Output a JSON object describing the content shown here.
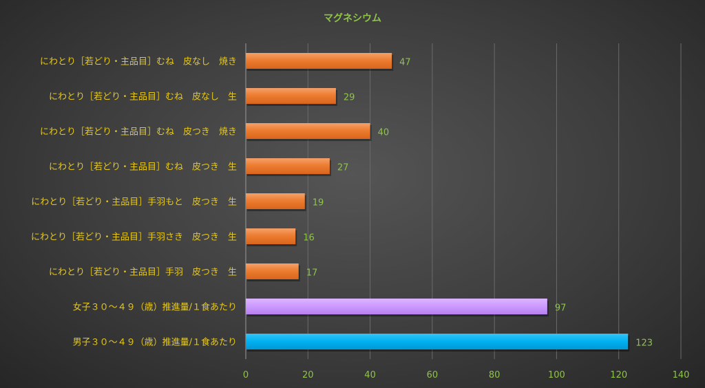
{
  "chart_data": {
    "type": "bar",
    "orientation": "horizontal",
    "title": "マグネシウム",
    "categories": [
      "にわとり［若どり・主品目］むね　皮なし　焼き",
      "にわとり［若どり・主品目］むね　皮なし　生",
      "にわとり［若どり・主品目］むね　皮つき　焼き",
      "にわとり［若どり・主品目］むね　皮つき　生",
      "にわとり［若どり・主品目］手羽もと　皮つき　生",
      "にわとり［若どり・主品目］手羽さき　皮つき　生",
      "にわとり［若どり・主品目］手羽　皮つき　生",
      "女子３０～４９（歳）推進量/１食あたり",
      "男子３０～４９（歳）推進量/１食あたり"
    ],
    "values": [
      47,
      29,
      40,
      27,
      19,
      16,
      17,
      97,
      123
    ],
    "bar_colors": [
      "#ed7d31",
      "#ed7d31",
      "#ed7d31",
      "#ed7d31",
      "#ed7d31",
      "#ed7d31",
      "#ed7d31",
      "#cc99ff",
      "#00b0f0"
    ],
    "x_ticks": [
      "0",
      "20",
      "40",
      "60",
      "80",
      "100",
      "120",
      "140"
    ],
    "xlim": [
      0,
      140
    ],
    "grid": true,
    "legend": "none",
    "colors": {
      "category_label": "#e6c81e",
      "tick_label": "#8fc34a",
      "data_label": "#8fc34a",
      "title": "#8fc34a",
      "gridline": "#6b6b6b"
    }
  }
}
